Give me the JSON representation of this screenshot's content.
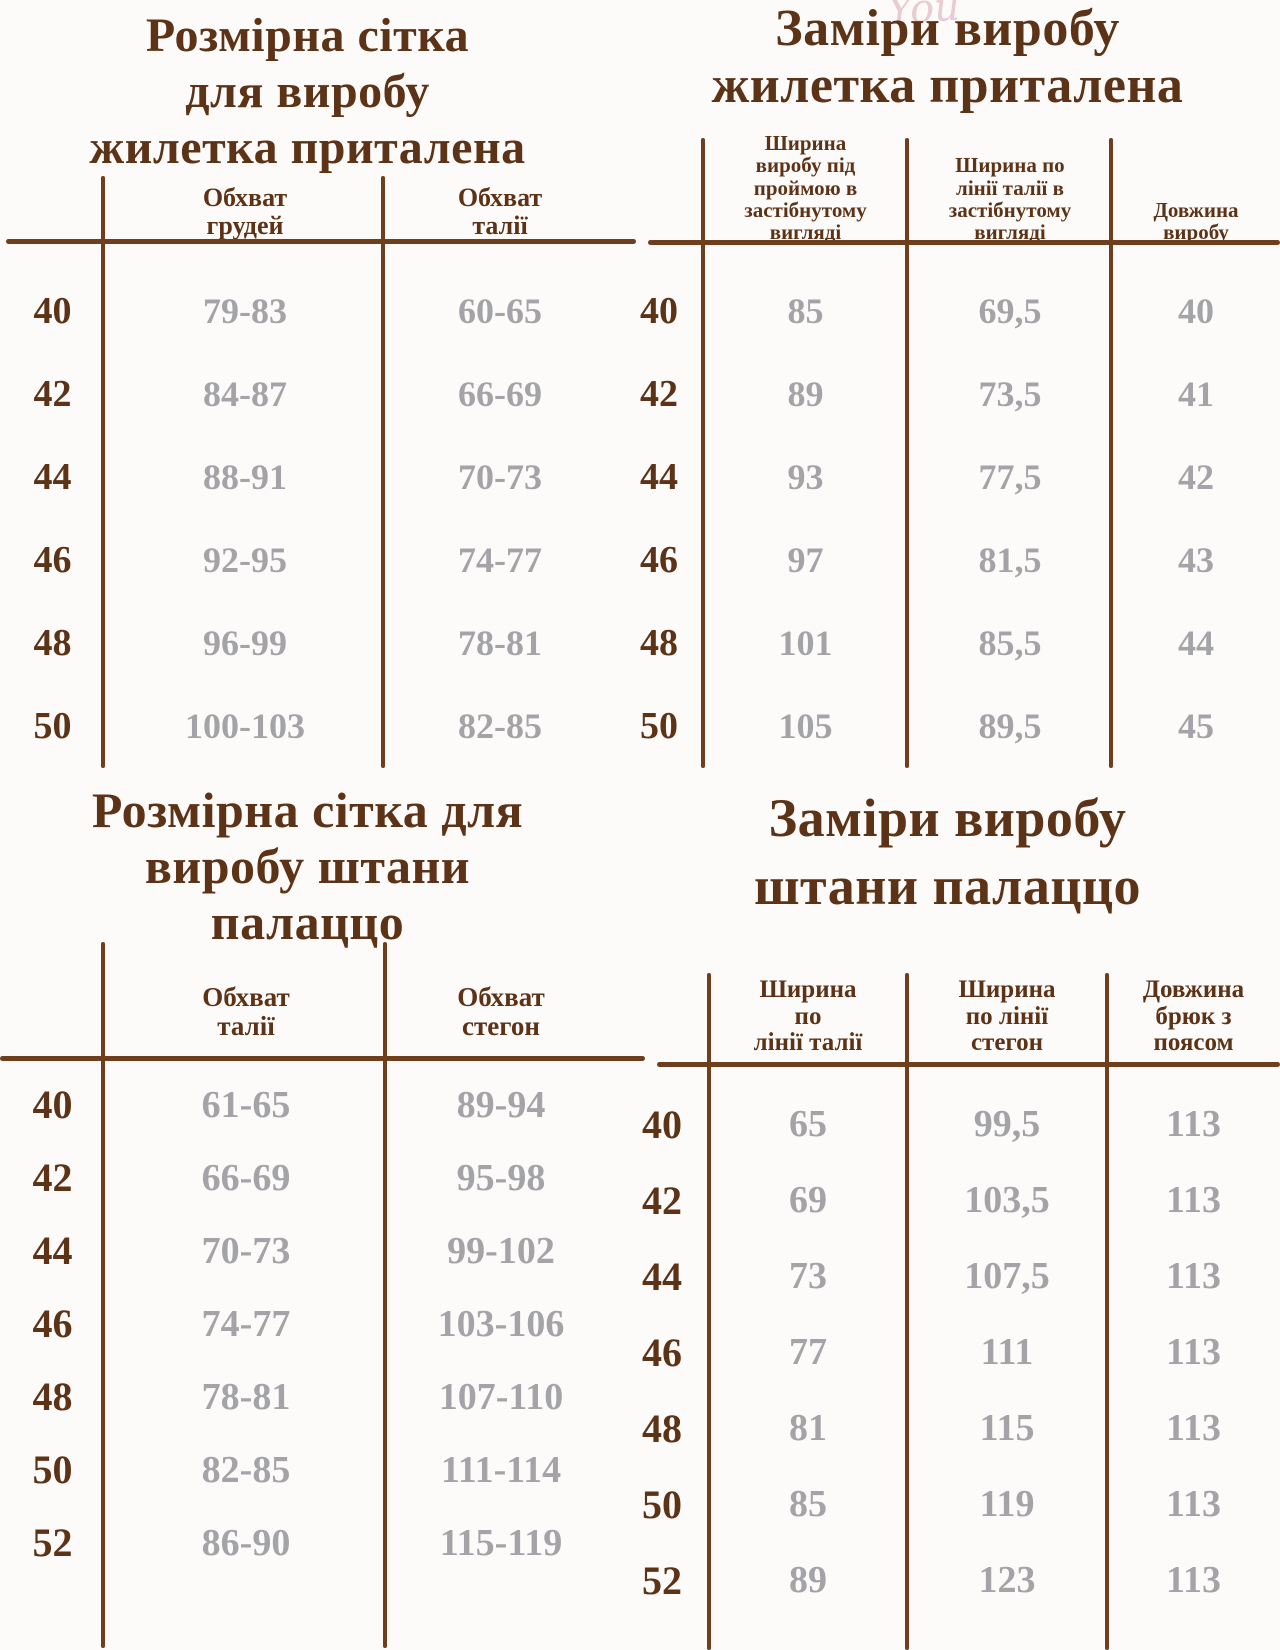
{
  "colors": {
    "brown": "#5d3317",
    "gray": "#a4a4a8",
    "line": "#6e3e1d",
    "background": "#fcfbf9",
    "watermark_pink": "#e9ccd2"
  },
  "watermark": {
    "text": "You"
  },
  "tables": [
    {
      "id": "size-grid-vest",
      "title_lines": [
        "Розмірна сітка",
        "для виробу",
        "жилетка приталена"
      ],
      "columns": [
        [
          "Обхват",
          "грудей"
        ],
        [
          "Обхват",
          "талії"
        ]
      ],
      "rows": [
        {
          "size": "40",
          "values": [
            "79-83",
            "60-65"
          ]
        },
        {
          "size": "42",
          "values": [
            "84-87",
            "66-69"
          ]
        },
        {
          "size": "44",
          "values": [
            "88-91",
            "70-73"
          ]
        },
        {
          "size": "46",
          "values": [
            "92-95",
            "74-77"
          ]
        },
        {
          "size": "48",
          "values": [
            "96-99",
            "78-81"
          ]
        },
        {
          "size": "50",
          "values": [
            "100-103",
            "82-85"
          ]
        }
      ]
    },
    {
      "id": "measurements-vest",
      "title_lines": [
        "Заміри виробу",
        "жилетка приталена"
      ],
      "columns": [
        [
          "Ширина",
          "виробу під",
          "проймою в",
          "застібнутому",
          "вигляді"
        ],
        [
          "Ширина по",
          "лінії талії в",
          "застібнутому",
          "вигляді"
        ],
        [
          "Довжина",
          "виробу"
        ]
      ],
      "rows": [
        {
          "size": "40",
          "values": [
            "85",
            "69,5",
            "40"
          ]
        },
        {
          "size": "42",
          "values": [
            "89",
            "73,5",
            "41"
          ]
        },
        {
          "size": "44",
          "values": [
            "93",
            "77,5",
            "42"
          ]
        },
        {
          "size": "46",
          "values": [
            "97",
            "81,5",
            "43"
          ]
        },
        {
          "size": "48",
          "values": [
            "101",
            "85,5",
            "44"
          ]
        },
        {
          "size": "50",
          "values": [
            "105",
            "89,5",
            "45"
          ]
        }
      ]
    },
    {
      "id": "size-grid-palazzo",
      "title_lines": [
        "Розмірна сітка для",
        "виробу штани",
        "палаццо"
      ],
      "columns": [
        [
          "Обхват",
          "талії"
        ],
        [
          "Обхват",
          "стегон"
        ]
      ],
      "rows": [
        {
          "size": "40",
          "values": [
            "61-65",
            "89-94"
          ]
        },
        {
          "size": "42",
          "values": [
            "66-69",
            "95-98"
          ]
        },
        {
          "size": "44",
          "values": [
            "70-73",
            "99-102"
          ]
        },
        {
          "size": "46",
          "values": [
            "74-77",
            "103-106"
          ]
        },
        {
          "size": "48",
          "values": [
            "78-81",
            "107-110"
          ]
        },
        {
          "size": "50",
          "values": [
            "82-85",
            "111-114"
          ]
        },
        {
          "size": "52",
          "values": [
            "86-90",
            "115-119"
          ]
        }
      ]
    },
    {
      "id": "measurements-palazzo",
      "title_lines": [
        "Заміри виробу",
        "штани палаццо"
      ],
      "columns": [
        [
          "Ширина",
          "по",
          "лінії талії"
        ],
        [
          "Ширина",
          "по лінії",
          "стегон"
        ],
        [
          "Довжина",
          "брюк з",
          "поясом"
        ]
      ],
      "rows": [
        {
          "size": "40",
          "values": [
            "65",
            "99,5",
            "113"
          ]
        },
        {
          "size": "42",
          "values": [
            "69",
            "103,5",
            "113"
          ]
        },
        {
          "size": "44",
          "values": [
            "73",
            "107,5",
            "113"
          ]
        },
        {
          "size": "46",
          "values": [
            "77",
            "111",
            "113"
          ]
        },
        {
          "size": "48",
          "values": [
            "81",
            "115",
            "113"
          ]
        },
        {
          "size": "50",
          "values": [
            "85",
            "119",
            "113"
          ]
        },
        {
          "size": "52",
          "values": [
            "89",
            "123",
            "113"
          ]
        }
      ]
    }
  ]
}
